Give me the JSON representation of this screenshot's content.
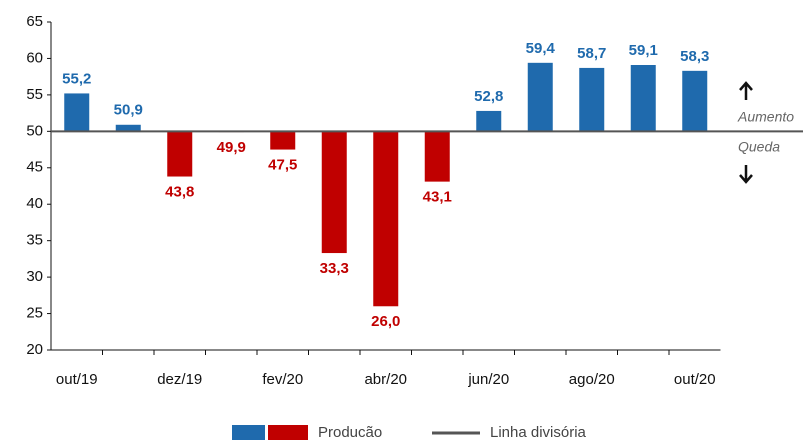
{
  "chart_data": {
    "type": "bar",
    "categories": [
      "out/19",
      null,
      "dez/19",
      null,
      "fev/20",
      null,
      "abr/20",
      null,
      "jun/20",
      null,
      "ago/20",
      null,
      "out/20"
    ],
    "series": [
      {
        "name": "Producão",
        "values": [
          55.2,
          50.9,
          43.8,
          49.9,
          47.5,
          33.3,
          26.0,
          43.1,
          52.8,
          59.4,
          58.7,
          59.1,
          58.3
        ],
        "value_labels": [
          "55,2",
          "50,9",
          "43,8",
          "49,9",
          "47,5",
          "33,3",
          "26,0",
          "43,1",
          "52,8",
          "59,4",
          "58,7",
          "59,1",
          "58,3"
        ]
      }
    ],
    "colors": {
      "above": "#1f6aad",
      "below": "#c00000"
    },
    "baseline": 50,
    "baseline_name": "Linha divisória",
    "baseline_color": "#555555",
    "annotations": {
      "above": "Aumento",
      "below": "Queda"
    },
    "ylim": [
      20,
      65
    ],
    "yticks": [
      20,
      25,
      30,
      35,
      40,
      45,
      50,
      55,
      60,
      65
    ],
    "grid": false
  }
}
